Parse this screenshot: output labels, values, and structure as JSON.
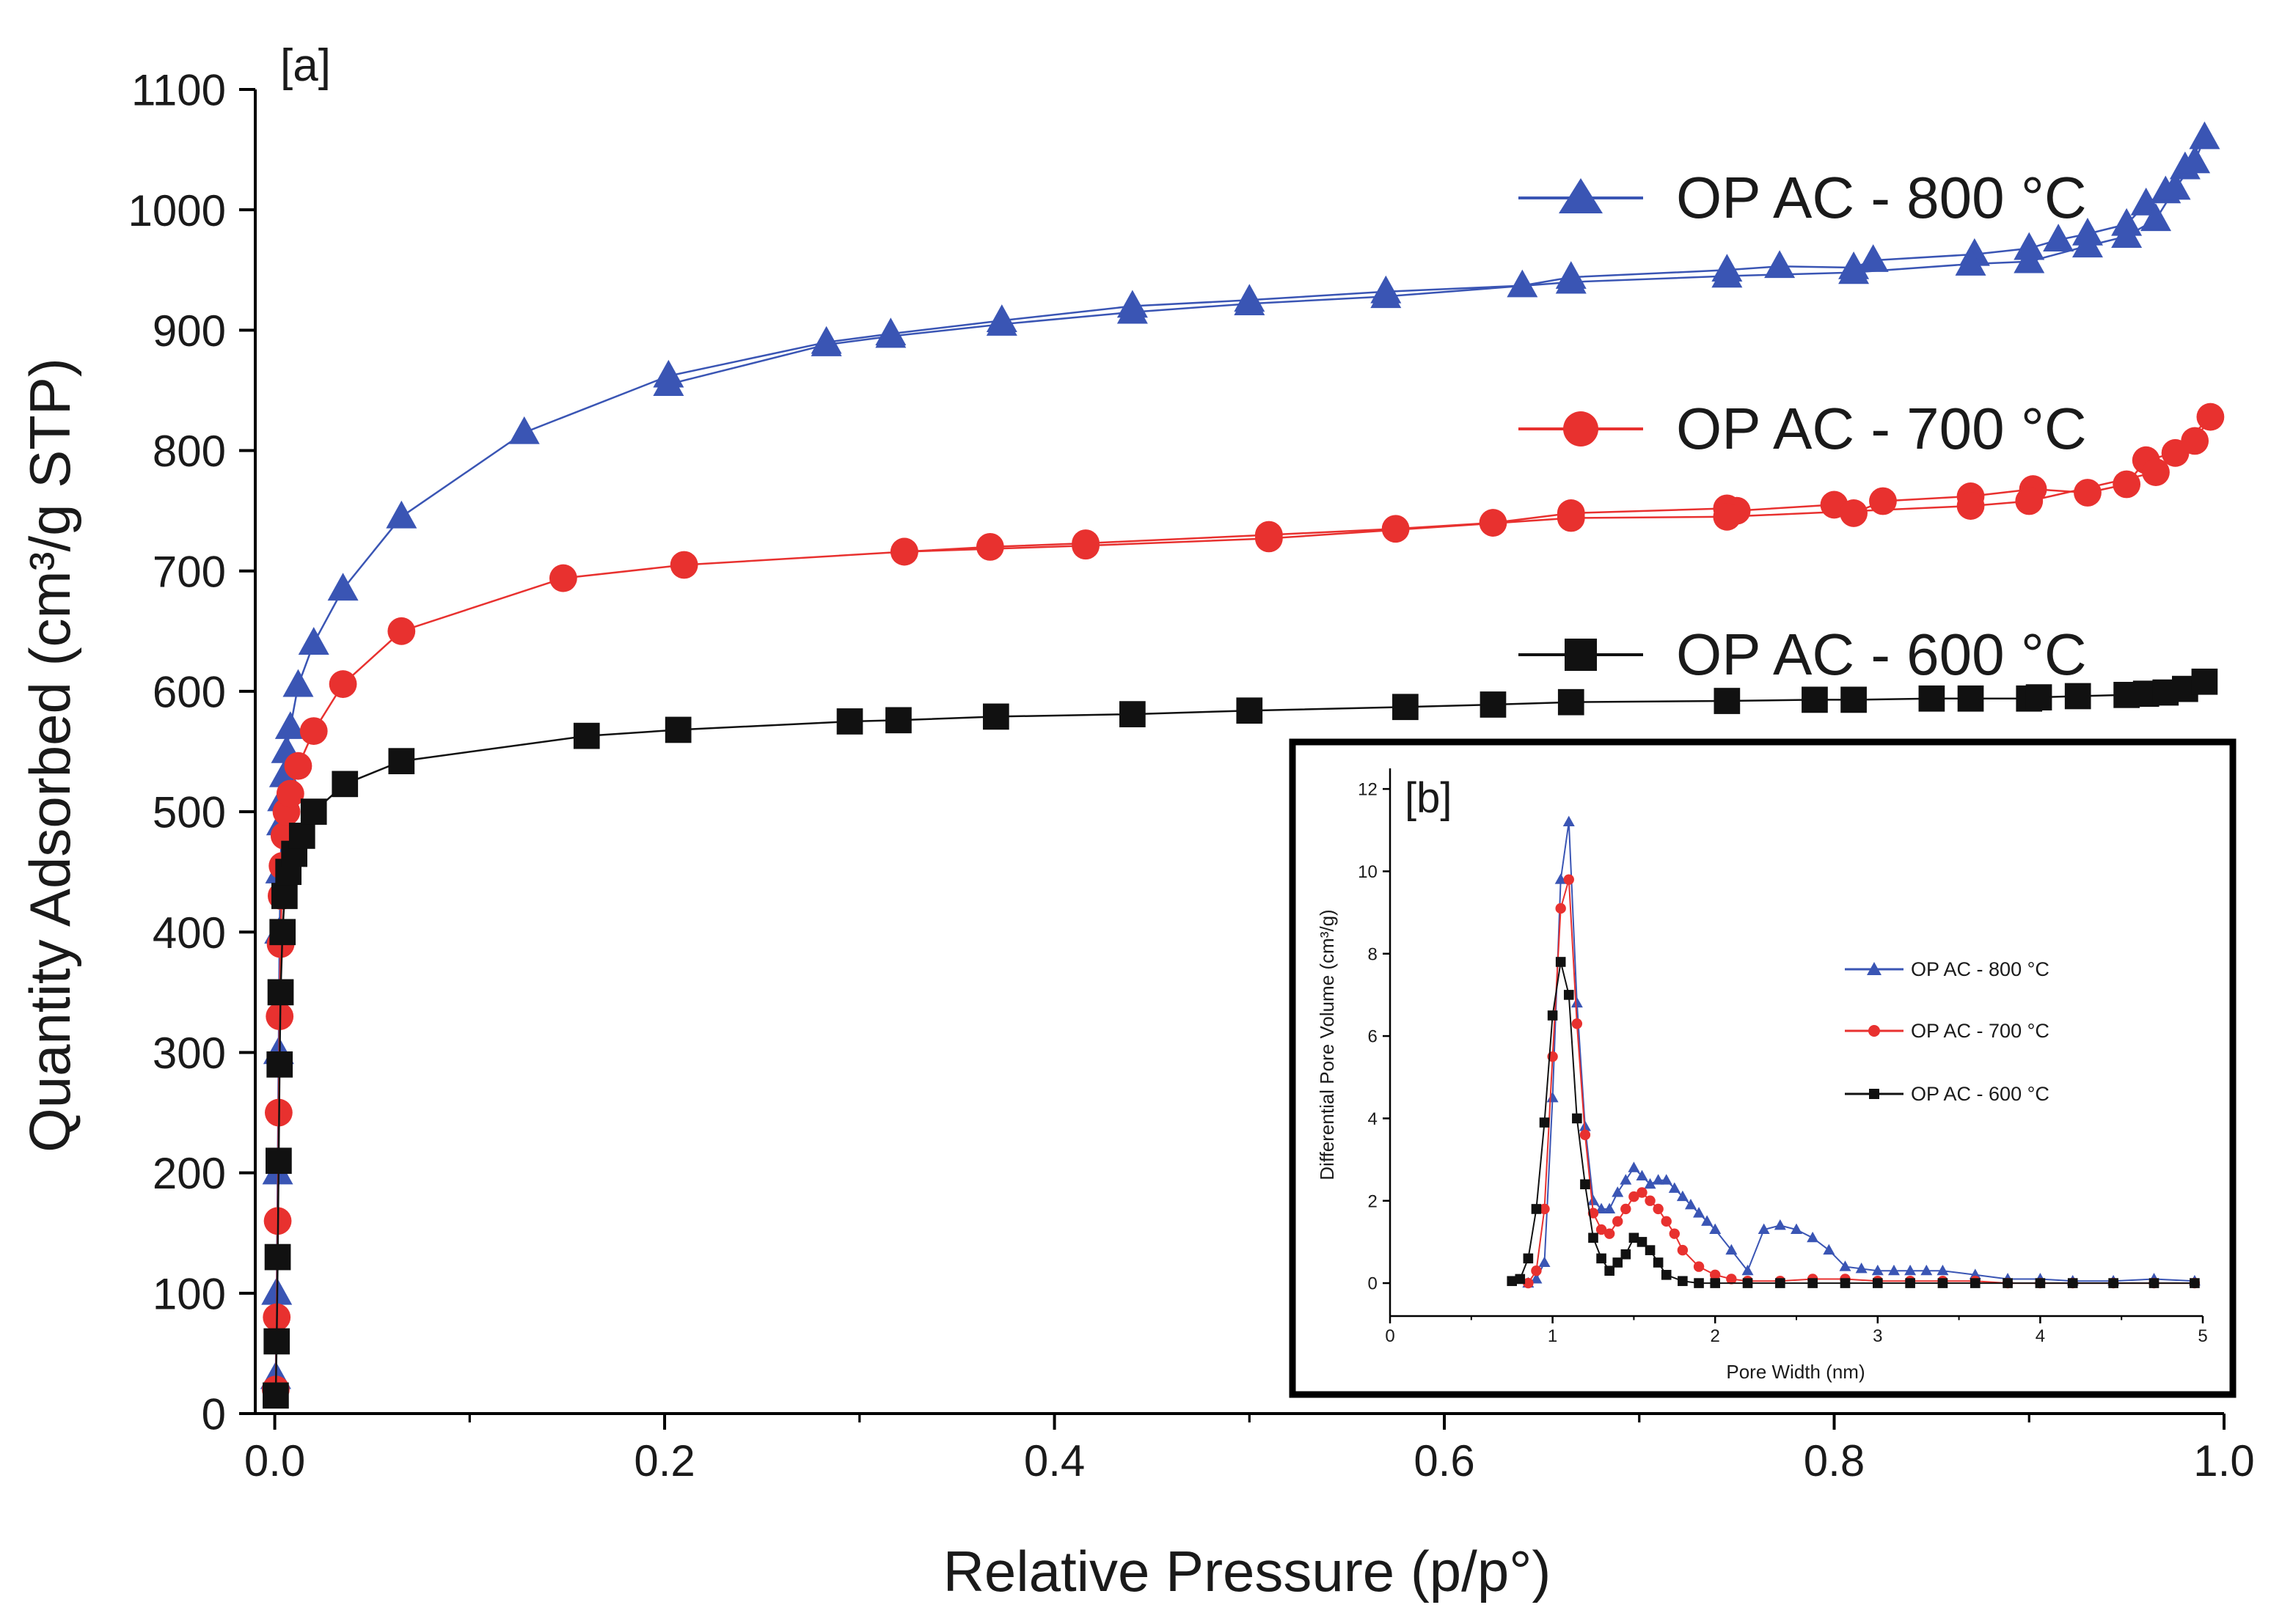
{
  "chart_data": [
    {
      "id": "main",
      "type": "line",
      "panel_label": "[a]",
      "title": "",
      "xlabel": "Relative Pressure (p/p°)",
      "ylabel": "Quantity Adsorbed (cm³/g STP)",
      "xlim": [
        -0.01,
        1.0
      ],
      "ylim": [
        0,
        1100
      ],
      "x_ticks": [
        0.0,
        0.2,
        0.4,
        0.6,
        0.8,
        1.0
      ],
      "x_tick_labels": [
        "0.0",
        "0.2",
        "0.4",
        "0.6",
        "0.8",
        "1.0"
      ],
      "y_ticks": [
        0,
        100,
        200,
        300,
        400,
        500,
        600,
        700,
        800,
        900,
        1000,
        1100
      ],
      "y_tick_labels": [
        "0",
        "100",
        "200",
        "300",
        "400",
        "500",
        "600",
        "700",
        "800",
        "900",
        "1000",
        "1100"
      ],
      "grid": false,
      "legend_position": "right",
      "series": [
        {
          "name": "OP AC - 800 °C",
          "color": "#3a55b4",
          "marker": "triangle",
          "x": [
            0.0005,
            0.001,
            0.0015,
            0.002,
            0.0025,
            0.003,
            0.0035,
            0.004,
            0.005,
            0.006,
            0.008,
            0.012,
            0.02,
            0.035,
            0.065,
            0.128,
            0.202,
            0.283,
            0.316,
            0.373,
            0.44,
            0.5,
            0.57,
            0.64,
            0.665,
            0.745,
            0.772,
            0.81,
            0.82,
            0.872,
            0.9,
            0.915,
            0.93,
            0.95,
            0.96,
            0.97,
            0.98,
            0.99,
            0.985,
            0.975,
            0.965,
            0.95,
            0.93,
            0.9,
            0.87,
            0.81,
            0.745,
            0.665,
            0.57,
            0.5,
            0.44,
            0.373,
            0.316,
            0.283,
            0.202
          ],
          "y": [
            30,
            100,
            200,
            300,
            400,
            450,
            490,
            510,
            530,
            550,
            570,
            605,
            640,
            685,
            745,
            815,
            862,
            890,
            897,
            908,
            920,
            925,
            932,
            937,
            944,
            950,
            953,
            952,
            958,
            963,
            968,
            975,
            980,
            988,
            1005,
            1015,
            1035,
            1060,
            1040,
            1018,
            992,
            978,
            970,
            957,
            955,
            948,
            945,
            940,
            928,
            922,
            915,
            905,
            895,
            888,
            855
          ]
        },
        {
          "name": "OP AC - 700 °C",
          "color": "#e8312f",
          "marker": "circle",
          "x": [
            0.0005,
            0.001,
            0.0015,
            0.002,
            0.0025,
            0.003,
            0.0035,
            0.004,
            0.005,
            0.006,
            0.008,
            0.012,
            0.02,
            0.035,
            0.065,
            0.148,
            0.21,
            0.323,
            0.367,
            0.416,
            0.51,
            0.575,
            0.625,
            0.665,
            0.745,
            0.75,
            0.8,
            0.81,
            0.825,
            0.87,
            0.902,
            0.93,
            0.95,
            0.96,
            0.975,
            0.985,
            0.993,
            0.965,
            0.9,
            0.87,
            0.745,
            0.665,
            0.51,
            0.416,
            0.323
          ],
          "y": [
            20,
            80,
            160,
            250,
            330,
            390,
            430,
            455,
            480,
            500,
            515,
            538,
            567,
            606,
            650,
            694,
            705,
            716,
            720,
            723,
            730,
            735,
            740,
            748,
            752,
            750,
            755,
            748,
            758,
            762,
            768,
            765,
            772,
            792,
            798,
            808,
            828,
            782,
            758,
            754,
            745,
            744,
            727,
            721,
            716
          ]
        },
        {
          "name": "OP AC - 600 °C",
          "color": "#111111",
          "marker": "square",
          "x": [
            0.0005,
            0.001,
            0.0015,
            0.002,
            0.0025,
            0.003,
            0.004,
            0.005,
            0.007,
            0.01,
            0.014,
            0.02,
            0.036,
            0.065,
            0.16,
            0.207,
            0.295,
            0.32,
            0.37,
            0.44,
            0.5,
            0.58,
            0.625,
            0.665,
            0.745,
            0.79,
            0.81,
            0.85,
            0.87,
            0.9,
            0.905,
            0.925,
            0.95,
            0.96,
            0.97,
            0.98,
            0.99
          ],
          "y": [
            15,
            60,
            130,
            210,
            290,
            350,
            400,
            430,
            450,
            465,
            480,
            500,
            523,
            542,
            563,
            568,
            575,
            576,
            579,
            581,
            584,
            587,
            589,
            591,
            592,
            593,
            593,
            594,
            594,
            594,
            595,
            596,
            597,
            598,
            599,
            602,
            608
          ]
        }
      ]
    },
    {
      "id": "inset",
      "type": "line",
      "panel_label": "[b]",
      "title": "",
      "xlabel": "Pore Width (nm)",
      "ylabel": "Differential Pore Volume (cm³/g)",
      "xlim": [
        0,
        5
      ],
      "ylim": [
        -0.8,
        12.5
      ],
      "x_ticks": [
        0,
        1,
        2,
        3,
        4,
        5
      ],
      "x_tick_labels": [
        "0",
        "1",
        "2",
        "3",
        "4",
        "5"
      ],
      "y_ticks": [
        0,
        2,
        4,
        6,
        8,
        10,
        12
      ],
      "y_tick_labels": [
        "0",
        "2",
        "4",
        "6",
        "8",
        "10",
        "12"
      ],
      "grid": false,
      "legend_position": "upper-right",
      "series": [
        {
          "name": "OP AC - 800 °C",
          "color": "#3a55b4",
          "marker": "triangle",
          "x": [
            0.85,
            0.9,
            0.95,
            1.0,
            1.05,
            1.1,
            1.15,
            1.2,
            1.25,
            1.3,
            1.35,
            1.4,
            1.45,
            1.5,
            1.55,
            1.6,
            1.65,
            1.7,
            1.75,
            1.8,
            1.85,
            1.9,
            1.95,
            2.0,
            2.1,
            2.2,
            2.3,
            2.4,
            2.5,
            2.6,
            2.7,
            2.8,
            2.9,
            3.0,
            3.1,
            3.2,
            3.3,
            3.4,
            3.6,
            3.8,
            4.0,
            4.2,
            4.45,
            4.7,
            4.95
          ],
          "y": [
            0,
            0.1,
            0.5,
            4.5,
            9.8,
            11.2,
            6.8,
            3.8,
            2.0,
            1.8,
            1.8,
            2.2,
            2.5,
            2.8,
            2.6,
            2.4,
            2.5,
            2.5,
            2.3,
            2.1,
            1.9,
            1.7,
            1.5,
            1.3,
            0.8,
            0.3,
            1.3,
            1.4,
            1.3,
            1.1,
            0.8,
            0.4,
            0.35,
            0.3,
            0.3,
            0.3,
            0.3,
            0.3,
            0.2,
            0.1,
            0.1,
            0.05,
            0.05,
            0.1,
            0.05
          ]
        },
        {
          "name": "OP AC - 700 °C",
          "color": "#e8312f",
          "marker": "circle",
          "x": [
            0.85,
            0.9,
            0.95,
            1.0,
            1.05,
            1.1,
            1.15,
            1.2,
            1.25,
            1.3,
            1.35,
            1.4,
            1.45,
            1.5,
            1.55,
            1.6,
            1.65,
            1.7,
            1.75,
            1.8,
            1.9,
            2.0,
            2.1,
            2.2,
            2.4,
            2.6,
            2.8,
            3.0,
            3.2,
            3.4,
            3.6,
            3.8,
            4.0,
            4.2,
            4.45,
            4.7,
            4.95
          ],
          "y": [
            0,
            0.3,
            1.8,
            5.5,
            9.1,
            9.8,
            6.3,
            3.6,
            1.7,
            1.3,
            1.2,
            1.5,
            1.8,
            2.1,
            2.2,
            2.0,
            1.8,
            1.5,
            1.2,
            0.8,
            0.4,
            0.2,
            0.1,
            0.05,
            0.05,
            0.1,
            0.1,
            0.05,
            0.05,
            0.05,
            0.05,
            0,
            0,
            0,
            0,
            0,
            0
          ]
        },
        {
          "name": "OP AC - 600 °C",
          "color": "#111111",
          "marker": "square",
          "x": [
            0.75,
            0.8,
            0.85,
            0.9,
            0.95,
            1.0,
            1.05,
            1.1,
            1.15,
            1.2,
            1.25,
            1.3,
            1.35,
            1.4,
            1.45,
            1.5,
            1.55,
            1.6,
            1.65,
            1.7,
            1.8,
            1.9,
            2.0,
            2.2,
            2.4,
            2.6,
            2.8,
            3.0,
            3.2,
            3.4,
            3.6,
            3.8,
            4.0,
            4.2,
            4.45,
            4.7,
            4.95
          ],
          "y": [
            0.05,
            0.1,
            0.6,
            1.8,
            3.9,
            6.5,
            7.8,
            7.0,
            4.0,
            2.4,
            1.1,
            0.6,
            0.3,
            0.5,
            0.7,
            1.1,
            1.0,
            0.8,
            0.5,
            0.2,
            0.05,
            0,
            0,
            0,
            0,
            0,
            0,
            0,
            0,
            0,
            0,
            0,
            0,
            0,
            0,
            0,
            0
          ]
        }
      ]
    }
  ]
}
